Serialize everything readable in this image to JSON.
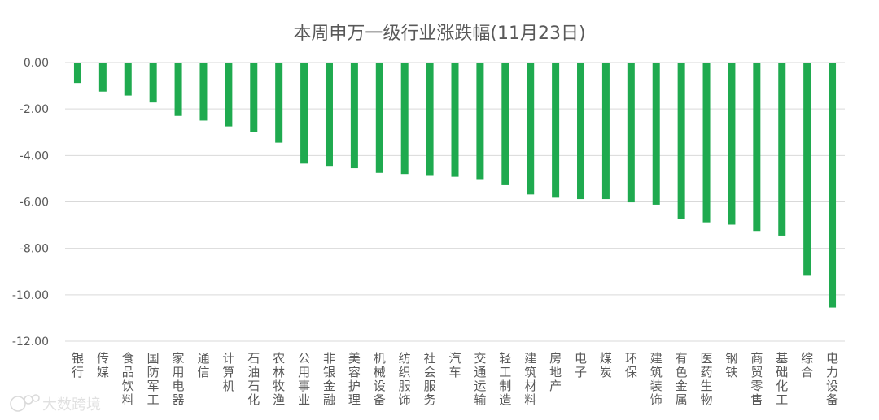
{
  "chart_data": {
    "type": "bar",
    "title": "本周申万一级行业涨跌幅(11月23日)",
    "xlabel": "",
    "ylabel": "",
    "ylim": [
      -12,
      0
    ],
    "yticks": [
      "0.00",
      "-2.00",
      "-4.00",
      "-6.00",
      "-8.00",
      "-10.00",
      "-12.00"
    ],
    "grid": true,
    "legend": "none",
    "bar_color": "#1faa4f",
    "categories": [
      "银行",
      "传媒",
      "食品饮料",
      "国防军工",
      "家用电器",
      "通信",
      "计算机",
      "石油石化",
      "农林牧渔",
      "公用事业",
      "非银金融",
      "美容护理",
      "机械设备",
      "纺织服饰",
      "社会服务",
      "汽车",
      "交通运输",
      "轻工制造",
      "建筑材料",
      "房地产",
      "电子",
      "煤炭",
      "环保",
      "建筑装饰",
      "有色金属",
      "医药生物",
      "钢铁",
      "商贸零售",
      "基础化工",
      "综合",
      "电力设备"
    ],
    "values": [
      -0.88,
      -1.25,
      -1.42,
      -1.72,
      -2.3,
      -2.5,
      -2.75,
      -3.0,
      -3.45,
      -4.35,
      -4.45,
      -4.55,
      -4.75,
      -4.8,
      -4.88,
      -4.92,
      -5.02,
      -5.28,
      -5.68,
      -5.82,
      -5.88,
      -5.88,
      -6.02,
      -6.12,
      -6.75,
      -6.88,
      -6.98,
      -7.25,
      -7.45,
      -9.18,
      -10.55
    ]
  },
  "watermark": "大数跨境"
}
